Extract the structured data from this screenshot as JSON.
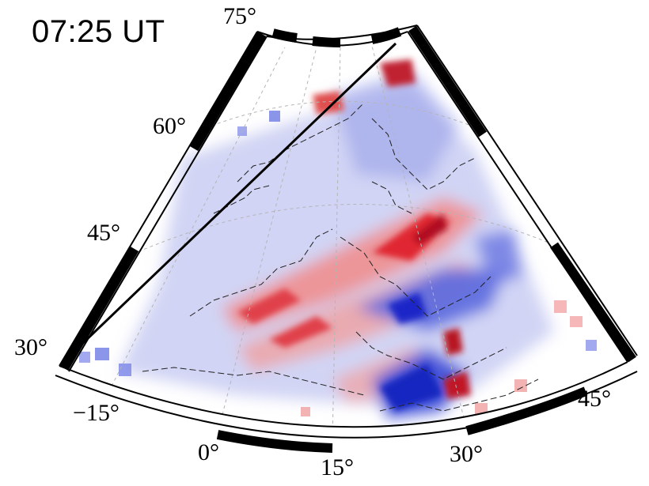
{
  "time_label": "07:25 UT",
  "latitude_ticks": [
    "30°",
    "45°",
    "60°",
    "75°"
  ],
  "longitude_ticks": [
    "−15°",
    "0°",
    "15°",
    "30°",
    "45°"
  ],
  "map": {
    "projection": "polar sector, northern hemisphere (Europe)",
    "lat_range_deg": [
      30,
      75
    ],
    "lon_range_deg": [
      -20,
      50
    ],
    "colors": {
      "positive": "#e0202a",
      "negative": "#1f2fd0",
      "frame": "#000000",
      "coast": "#222222"
    },
    "feature": "black great-circle line from about 30°N, 20°W to about 75°N, 22°E",
    "gridlines": "dashed light gray"
  }
}
